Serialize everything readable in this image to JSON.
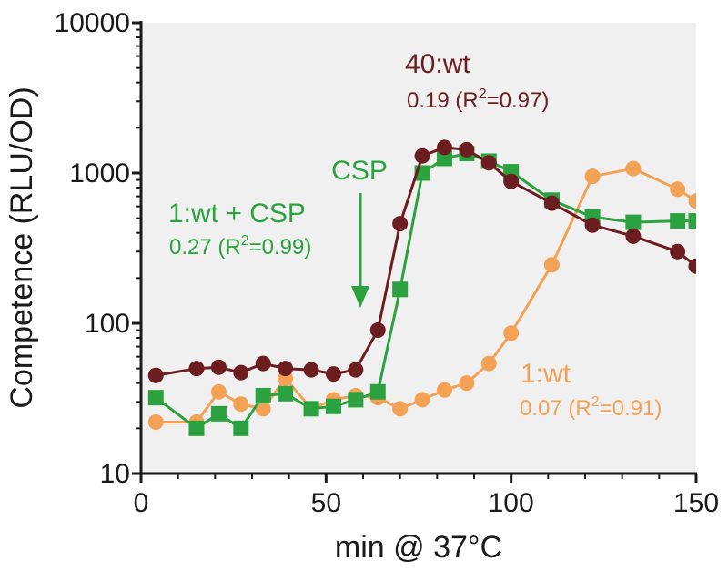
{
  "chart_data": {
    "type": "line",
    "title": "",
    "xlabel": "min @ 37°C",
    "ylabel": "Competence (RLU/OD)",
    "xlim": [
      0,
      150
    ],
    "ylim": [
      10,
      10000
    ],
    "yscale": "log",
    "xticks": [
      "0",
      "50",
      "100",
      "150"
    ],
    "yticks": [
      "10",
      "100",
      "1000",
      "10000"
    ],
    "background": "#f0f0f0",
    "series": [
      {
        "name": "1:wt",
        "color": "#f3a155",
        "marker": "circle",
        "x": [
          4,
          15,
          21,
          27,
          33,
          39,
          46,
          52,
          58,
          64,
          70,
          76,
          82,
          88,
          94,
          100,
          111,
          122,
          133,
          145,
          150
        ],
        "y": [
          22,
          22,
          35,
          29,
          27,
          43,
          27,
          31,
          33,
          32,
          27,
          31,
          36,
          40,
          54,
          86,
          245,
          950,
          1070,
          780,
          650
        ]
      },
      {
        "name": "1:wt + CSP",
        "color": "#2ca13f",
        "marker": "square",
        "x": [
          4,
          15,
          21,
          27,
          33,
          39,
          46,
          52,
          58,
          64,
          70,
          76,
          82,
          88,
          94,
          100,
          111,
          122,
          133,
          145,
          150
        ],
        "y": [
          32,
          20,
          25,
          20,
          33,
          34,
          27,
          28,
          31,
          35,
          168,
          1000,
          1250,
          1350,
          1200,
          1020,
          660,
          510,
          470,
          480,
          480
        ]
      },
      {
        "name": "40:wt",
        "color": "#6b1d1f",
        "marker": "circle",
        "x": [
          4,
          15,
          21,
          27,
          33,
          39,
          46,
          52,
          58,
          64,
          70,
          76,
          82,
          88,
          94,
          100,
          111,
          122,
          133,
          145,
          150
        ],
        "y": [
          45,
          50,
          51,
          47,
          54,
          50,
          49,
          46,
          49,
          90,
          460,
          1300,
          1480,
          1430,
          1170,
          880,
          630,
          450,
          380,
          300,
          240
        ]
      }
    ],
    "annotations": {
      "wt40": {
        "title": "40:wt",
        "rate": "0.19 (R",
        "sup": "2",
        "rest": "=0.97)",
        "color": "#6b1d1f"
      },
      "csp_series": {
        "title": "1:wt + CSP",
        "rate": "0.27 (R",
        "sup": "2",
        "rest": "=0.99)",
        "color": "#2ca13f"
      },
      "wt1": {
        "title": "1:wt",
        "rate": "0.07 (R",
        "sup": "2",
        "rest": "=0.91)",
        "color": "#f3a155"
      },
      "csp_arrow": {
        "label": "CSP",
        "x": 60,
        "color": "#2ca13f"
      }
    }
  }
}
